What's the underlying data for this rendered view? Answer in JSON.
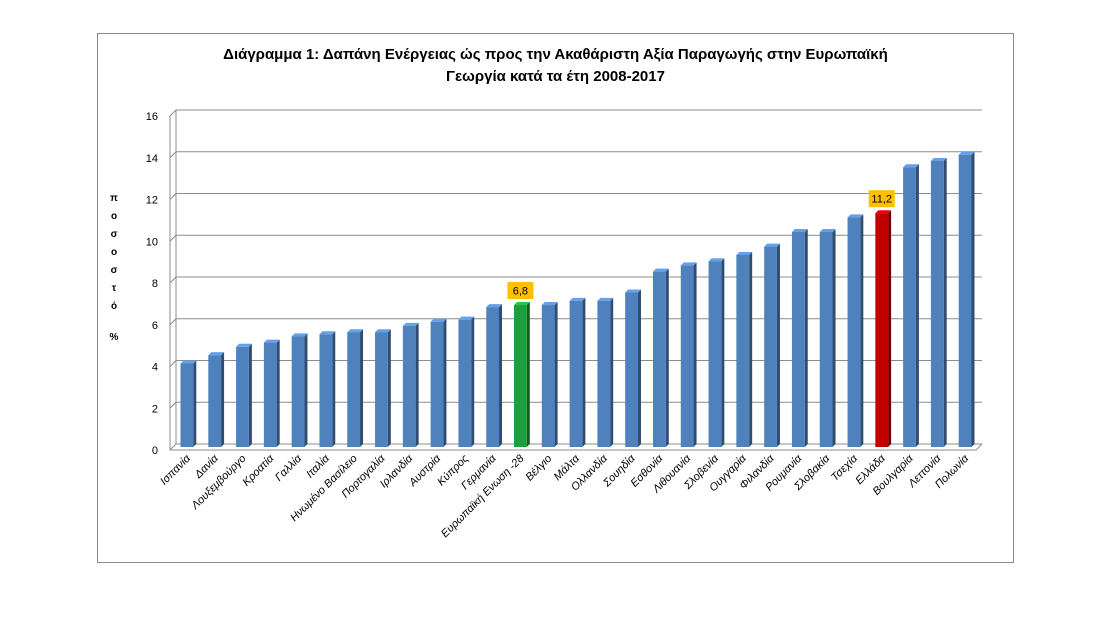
{
  "chart_data": {
    "type": "bar",
    "title": "Διάγραμμα 1: Δαπάνη Ενέργειας ώς προς την Ακαθάριστη Αξία Παραγωγής στην Ευρωπαϊκή Γεωργία κατά τα έτη 2008-2017",
    "title_lines": [
      "Διάγραμμα 1: Δαπάνη Ενέργειας ώς προς την Ακαθάριστη Αξία Παραγωγής στην Ευρωπαϊκή",
      "Γεωργία κατά τα έτη 2008-2017"
    ],
    "ylabel": "ποσοστό",
    "yunit": "%",
    "ylim": [
      0,
      16
    ],
    "yticks": [
      0,
      2,
      4,
      6,
      8,
      10,
      12,
      14,
      16
    ],
    "grid": true,
    "categories": [
      "Ισπανία",
      "Δανία",
      "Λουξεμβούργο",
      "Κροατία",
      "Γαλλία",
      "Ιταλία",
      "Ηνωμένο Βασίλειο",
      "Πορτογαλία",
      "Ιρλανδία",
      "Αυστρία",
      "Κύπρος",
      "Γερμανία",
      "Ευρωπαϊκή Ενωση -28",
      "Βέλγιο",
      "Μάλτα",
      "Ολλανδία",
      "Σουηδία",
      "Εσθονία",
      "Λιθουανία",
      "Σλοβενία",
      "Ουγγαρία",
      "Φιλανδία",
      "Ρουμανία",
      "Σλοβακία",
      "Τσεχία",
      "Ελλάδα",
      "Βουλγαρία",
      "Λεττονία",
      "Πολωνία"
    ],
    "values": [
      4.0,
      4.4,
      4.8,
      5.0,
      5.3,
      5.4,
      5.5,
      5.5,
      5.8,
      6.0,
      6.1,
      6.7,
      6.8,
      6.8,
      7.0,
      7.0,
      7.4,
      8.4,
      8.7,
      8.9,
      9.2,
      9.6,
      10.3,
      10.3,
      11.0,
      11.2,
      13.4,
      13.7,
      14.0
    ],
    "highlights": [
      {
        "category": "Ευρωπαϊκή Ενωση -28",
        "label": "6,8",
        "color": "#1e9e3c"
      },
      {
        "category": "Ελλάδα",
        "label": "11,2",
        "color": "#c00000"
      }
    ],
    "bar_color": "#4f81bd",
    "label_box_color": "#ffc000"
  }
}
